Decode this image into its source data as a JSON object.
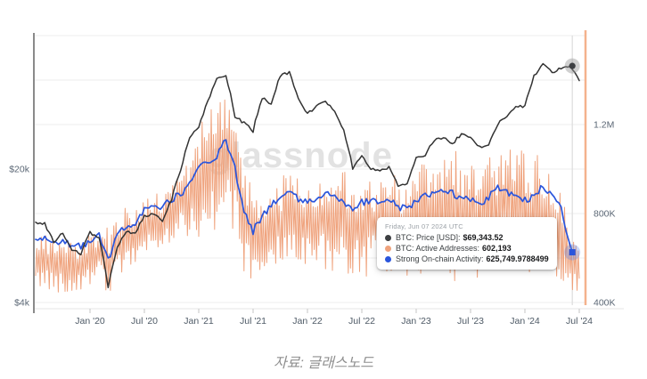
{
  "watermark": {
    "text": "glassnode"
  },
  "caption": "자료: 글래스노드",
  "tooltip": {
    "date": "Friday, Jun 07 2024 UTC",
    "rows": [
      {
        "label": "BTC: Price [USD]:",
        "value": "$69,343.52",
        "color": "#3d3f42"
      },
      {
        "label": "BTC: Active Addresses:",
        "value": "602,193",
        "color": "#efa27c"
      },
      {
        "label": "Strong On-chain Activity:",
        "value": "625,749.9788499",
        "color": "#2a55dc"
      }
    ]
  },
  "chart_data": {
    "type": "line",
    "title": "",
    "x_start": "Jul 2019",
    "x_end": "Jul 2024",
    "x_interval": "monthly",
    "x_tick_labels": [
      "Jan '20",
      "Jul '20",
      "Jan '21",
      "Jul '21",
      "Jan '22",
      "Jul '22",
      "Jan '23",
      "Jul '23",
      "Jan '24",
      "Jul '24"
    ],
    "left_axis": {
      "scale": "log",
      "ticks": [
        {
          "label": "$20k",
          "value": 20000
        },
        {
          "label": "$4k",
          "value": 4000
        }
      ]
    },
    "right_axis": {
      "scale": "linear",
      "ticks": [
        {
          "label": "1.2M",
          "value": 1200000
        },
        {
          "label": "800K",
          "value": 800000
        },
        {
          "label": "400K",
          "value": 400000
        }
      ]
    },
    "grid": true,
    "legend_position": "none",
    "hover_point": {
      "x_month_index": 59.23,
      "price_usd": 69343.52,
      "active_addresses": 602193,
      "strong_on_chain_activity": 625749.9788499
    },
    "series": [
      {
        "name": "BTC: Price [USD]",
        "axis": "left",
        "color": "#333333",
        "style": "line",
        "monthly_values": [
          10500,
          10300,
          8300,
          9200,
          7500,
          7200,
          9350,
          8600,
          4800,
          7800,
          9450,
          9140,
          11350,
          11650,
          10780,
          13800,
          19700,
          28900,
          33100,
          45100,
          58800,
          62000,
          37300,
          35000,
          31500,
          47100,
          43800,
          61300,
          64000,
          46200,
          38500,
          43200,
          45500,
          39700,
          31800,
          19900,
          23300,
          20050,
          19400,
          20500,
          16500,
          16600,
          23100,
          23500,
          28500,
          29200,
          27200,
          30500,
          29200,
          26000,
          26900,
          34500,
          37700,
          42300,
          42600,
          61200,
          71300,
          63800,
          67500,
          69343.52,
          57500
        ]
      },
      {
        "name": "BTC: Active Addresses",
        "axis": "right",
        "color": "#efa27c",
        "style": "noisy-band",
        "monthly_values": [
          600000,
          590000,
          560000,
          570000,
          555000,
          550000,
          600000,
          620000,
          580000,
          640000,
          680000,
          700000,
          740000,
          760000,
          760000,
          800000,
          840000,
          880000,
          960000,
          980000,
          1000000,
          1060000,
          980000,
          800000,
          660000,
          720000,
          740000,
          760000,
          780000,
          760000,
          740000,
          740000,
          760000,
          780000,
          760000,
          740000,
          760000,
          760000,
          740000,
          760000,
          740000,
          720000,
          760000,
          780000,
          800000,
          820000,
          800000,
          780000,
          780000,
          780000,
          800000,
          820000,
          840000,
          860000,
          820000,
          800000,
          800000,
          760000,
          700000,
          602193,
          530000
        ],
        "monthly_spread": [
          130000,
          130000,
          120000,
          120000,
          120000,
          110000,
          120000,
          130000,
          150000,
          130000,
          130000,
          130000,
          140000,
          140000,
          130000,
          150000,
          160000,
          180000,
          300000,
          280000,
          300000,
          300000,
          280000,
          260000,
          220000,
          200000,
          190000,
          200000,
          210000,
          200000,
          200000,
          190000,
          210000,
          240000,
          230000,
          230000,
          250000,
          240000,
          220000,
          240000,
          230000,
          210000,
          240000,
          260000,
          270000,
          290000,
          280000,
          250000,
          240000,
          230000,
          250000,
          270000,
          290000,
          300000,
          300000,
          280000,
          270000,
          240000,
          200000,
          150000,
          90000
        ]
      },
      {
        "name": "Strong On-chain Activity",
        "axis": "right",
        "color": "#2a55dc",
        "style": "line",
        "monthly_values": [
          690000,
          685000,
          660000,
          670000,
          655000,
          650000,
          680000,
          700000,
          590000,
          700000,
          740000,
          760000,
          820000,
          840000,
          830000,
          860000,
          890000,
          930000,
          1010000,
          1030000,
          1060000,
          1130000,
          1000000,
          800000,
          720000,
          790000,
          840000,
          870000,
          900000,
          860000,
          850000,
          870000,
          890000,
          880000,
          840000,
          820000,
          850000,
          860000,
          840000,
          860000,
          830000,
          820000,
          860000,
          880000,
          900000,
          910000,
          890000,
          870000,
          860000,
          850000,
          870000,
          920000,
          900000,
          880000,
          860000,
          880000,
          920000,
          880000,
          840000,
          625749.9788499,
          null
        ]
      }
    ],
    "colors": {
      "grid": "#ededed",
      "crosshair": "#dcdcdc",
      "axis_left": "#8a8a8a",
      "axis_right": "#f4b28d",
      "tick_text": "#5b6775",
      "x_text": "#4e5a66"
    }
  }
}
